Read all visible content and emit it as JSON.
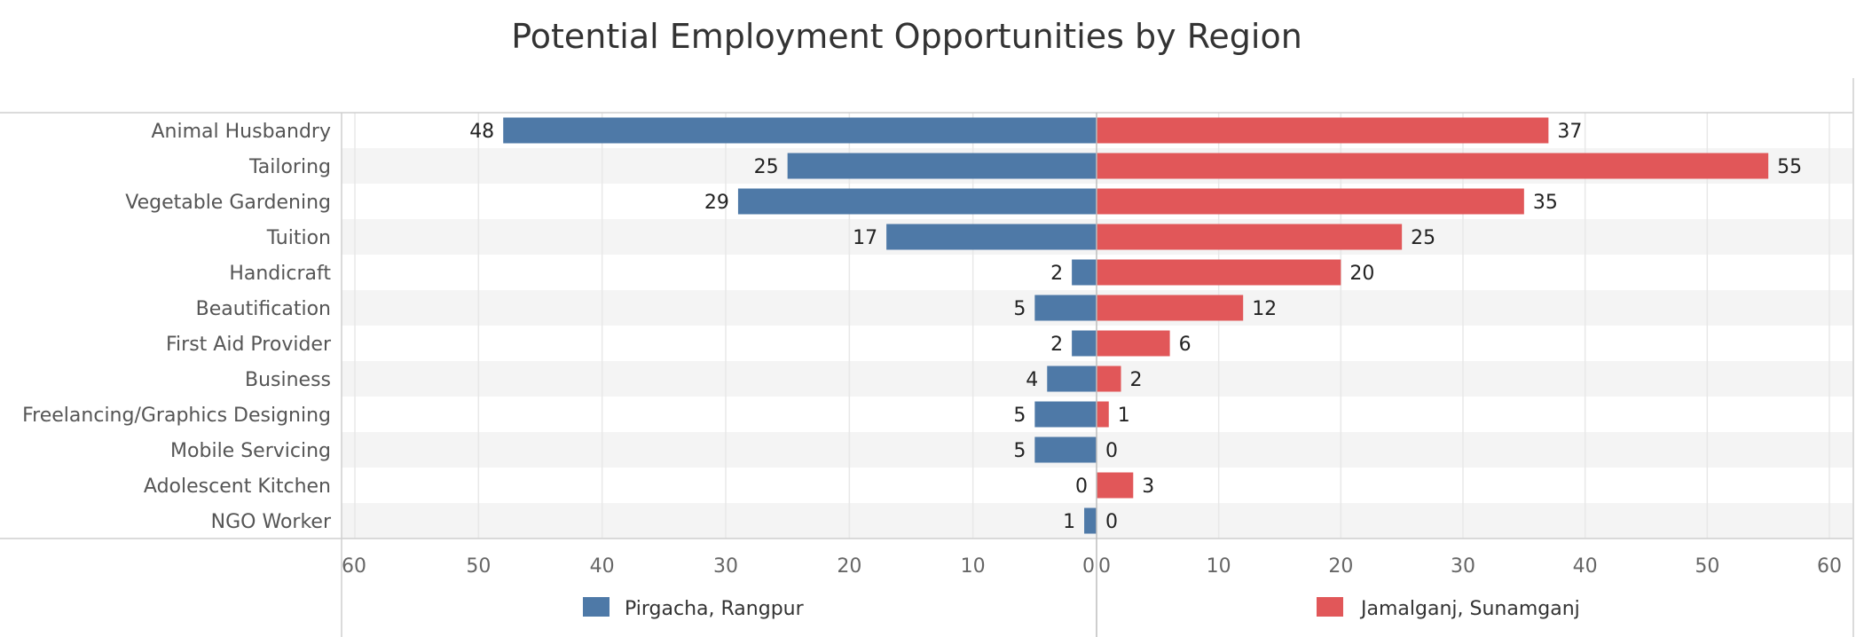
{
  "chart_data": {
    "type": "bar",
    "orientation": "horizontal-diverging",
    "title": "Potential Employment Opportunities by Region",
    "categories": [
      "Animal Husbandry",
      "Tailoring",
      "Vegetable Gardening",
      "Tuition",
      "Handicraft",
      "Beautification",
      "First Aid Provider",
      "Business",
      "Freelancing/Graphics Designing",
      "Mobile Servicing",
      "Adolescent Kitchen",
      "NGO Worker"
    ],
    "series": [
      {
        "name": "Pirgacha, Rangpur",
        "color": "#4e79a7",
        "direction": "left",
        "values": [
          48,
          25,
          29,
          17,
          2,
          5,
          2,
          4,
          5,
          5,
          0,
          1
        ]
      },
      {
        "name": "Jamalganj, Sunamganj",
        "color": "#e15759",
        "direction": "right",
        "values": [
          37,
          55,
          35,
          25,
          20,
          12,
          6,
          2,
          1,
          0,
          3,
          0
        ]
      }
    ],
    "left_axis": {
      "range": [
        0,
        60
      ],
      "ticks": [
        "60",
        "50",
        "40",
        "30",
        "20",
        "10",
        "0"
      ]
    },
    "right_axis": {
      "range": [
        0,
        60
      ],
      "ticks": [
        "0",
        "10",
        "20",
        "30",
        "40",
        "50",
        "60"
      ]
    },
    "grid": true,
    "legend": "bottom"
  }
}
